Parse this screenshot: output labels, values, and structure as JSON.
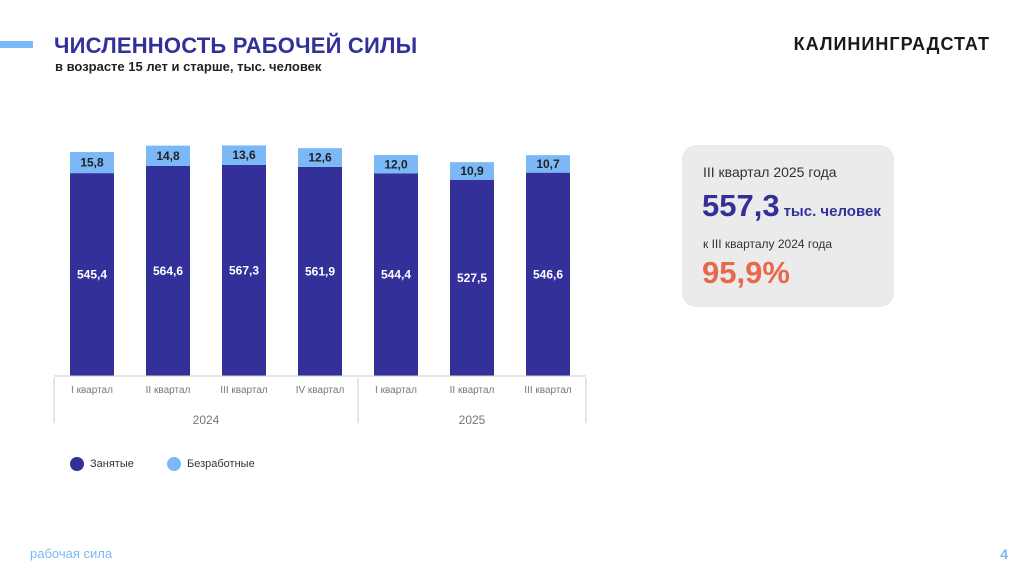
{
  "header": {
    "title": "ЧИСЛЕННОСТЬ РАБОЧЕЙ СИЛЫ",
    "subtitle": "в возрасте 15 лет и старше, тыс. человек",
    "brand": "КАЛИНИНГРАДСТАТ"
  },
  "chart_data": {
    "type": "bar",
    "stacked": true,
    "categories": [
      "I квартал",
      "II квартал",
      "III квартал",
      "IV квартал",
      "I квартал",
      "II квартал",
      "III квартал"
    ],
    "groups": [
      {
        "label": "2024",
        "count": 4
      },
      {
        "label": "2025",
        "count": 3
      }
    ],
    "series": [
      {
        "name": "Занятые",
        "color": "#34309a",
        "values": [
          545.4,
          564.6,
          567.3,
          561.9,
          544.4,
          527.5,
          546.6
        ]
      },
      {
        "name": "Безработные",
        "color": "#7bb8f7",
        "values": [
          15.8,
          14.8,
          13.6,
          12.6,
          12.0,
          10.9,
          10.7
        ]
      }
    ],
    "legend": "bottom-left",
    "grid": false
  },
  "card": {
    "period": "III квартал 2025 года",
    "value": "557,3",
    "unit": "тыс. человек",
    "comparison_label": "к III кварталу 2024 года",
    "percent": "95,9%"
  },
  "footer": {
    "section": "рабочая сила",
    "page": "4"
  }
}
